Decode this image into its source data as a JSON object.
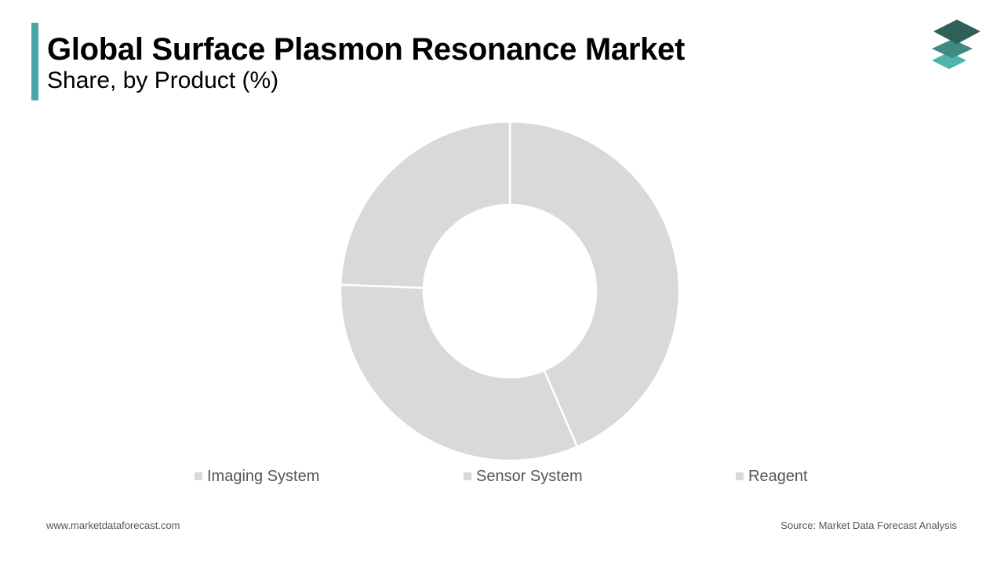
{
  "header": {
    "title": "Global Surface Plasmon Resonance Market",
    "subtitle": "Share, by Product (%)",
    "accent_color": "#4aa7a7"
  },
  "logo": {
    "icon": "stacked-layers-logo-icon",
    "colors": [
      "#2f5f59",
      "#3f8a84",
      "#4fb3ae"
    ]
  },
  "chart_data": {
    "type": "pie",
    "donut": true,
    "categories": [
      "Imaging System",
      "Sensor System",
      "Reagent"
    ],
    "values": [
      43.5,
      32.1,
      24.4
    ],
    "colors": [
      "#d9d9d9",
      "#d9d9d9",
      "#d9d9d9"
    ],
    "legend": "bottom"
  },
  "footer": {
    "website": "www.marketdataforecast.com",
    "source": "Source: Market Data Forecast Analysis"
  }
}
